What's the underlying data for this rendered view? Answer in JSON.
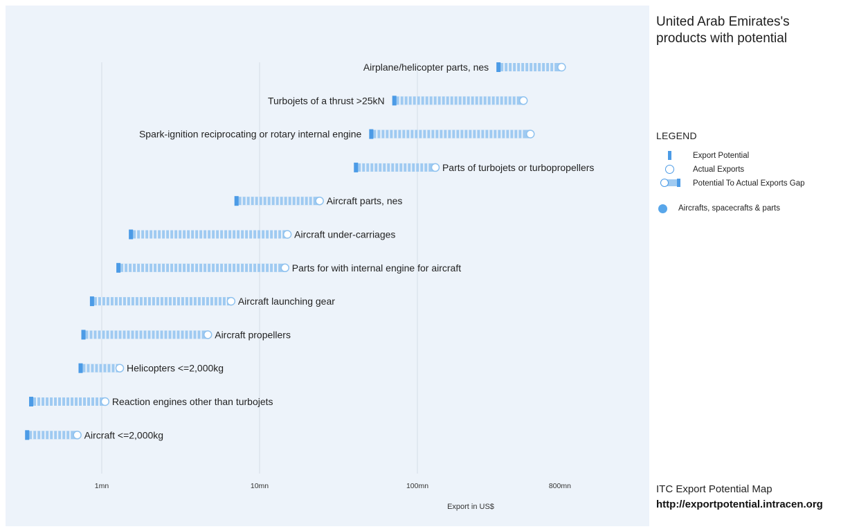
{
  "title": "United Arab Emirates's products with potential",
  "legend": {
    "title": "LEGEND",
    "items": [
      {
        "label": "Export Potential",
        "icon": "export-potential-bar-icon"
      },
      {
        "label": "Actual Exports",
        "icon": "actual-exports-circle-icon"
      },
      {
        "label": "Potential To Actual Exports Gap",
        "icon": "gap-capsule-icon"
      },
      {
        "label": "Aircrafts, spacecrafts & parts",
        "icon": "category-dot-icon"
      }
    ]
  },
  "footer": {
    "source": "ITC Export Potential Map",
    "url": "http://exportpotential.intracen.org"
  },
  "colors": {
    "background": "#edf3fa",
    "potential": "#4c9be6",
    "gap": "#9fcaf1",
    "actual_stroke": "#8fc2ef",
    "category": "#58a6ea",
    "grid": "#d5dde7"
  },
  "chart_data": {
    "type": "dumbbell",
    "x_scale": "log",
    "xlabel": "Export in US$",
    "ticks": [
      {
        "value": 1000000,
        "label": "1mn"
      },
      {
        "value": 10000000,
        "label": "10mn"
      },
      {
        "value": 100000000,
        "label": "100mn"
      },
      {
        "value": 800000000,
        "label": "800mn"
      }
    ],
    "xlim": [
      280000,
      4000000000
    ],
    "category": "Aircrafts, spacecrafts & parts",
    "products": [
      {
        "name": "Airplane/helicopter parts, nes",
        "actual": 820000000,
        "potential": 320000000,
        "label_side": "left"
      },
      {
        "name": "Turbojets of a thrust >25kN",
        "actual": 470000000,
        "potential": 70000000,
        "label_side": "left"
      },
      {
        "name": "Spark-ignition reciprocating or rotary internal engine",
        "actual": 520000000,
        "potential": 50000000,
        "label_side": "left"
      },
      {
        "name": "Parts of turbojets or turbopropellers",
        "actual": 130000000,
        "potential": 40000000,
        "label_side": "right"
      },
      {
        "name": "Aircraft parts, nes",
        "actual": 24000000,
        "potential": 7000000,
        "label_side": "right"
      },
      {
        "name": "Aircraft under-carriages",
        "actual": 15000000,
        "potential": 1500000,
        "label_side": "right"
      },
      {
        "name": "Parts for with internal engine for aircraft",
        "actual": 14500000,
        "potential": 1250000,
        "label_side": "right"
      },
      {
        "name": "Aircraft launching gear",
        "actual": 6600000,
        "potential": 850000,
        "label_side": "right"
      },
      {
        "name": "Aircraft propellers",
        "actual": 4700000,
        "potential": 750000,
        "label_side": "right"
      },
      {
        "name": "Helicopters <=2,000kg",
        "actual": 1300000,
        "potential": 720000,
        "label_side": "right"
      },
      {
        "name": "Reaction engines other than turbojets",
        "actual": 1050000,
        "potential": 350000,
        "label_side": "right"
      },
      {
        "name": "Aircraft <=2,000kg",
        "actual": 700000,
        "potential": 330000,
        "label_side": "right"
      }
    ]
  }
}
